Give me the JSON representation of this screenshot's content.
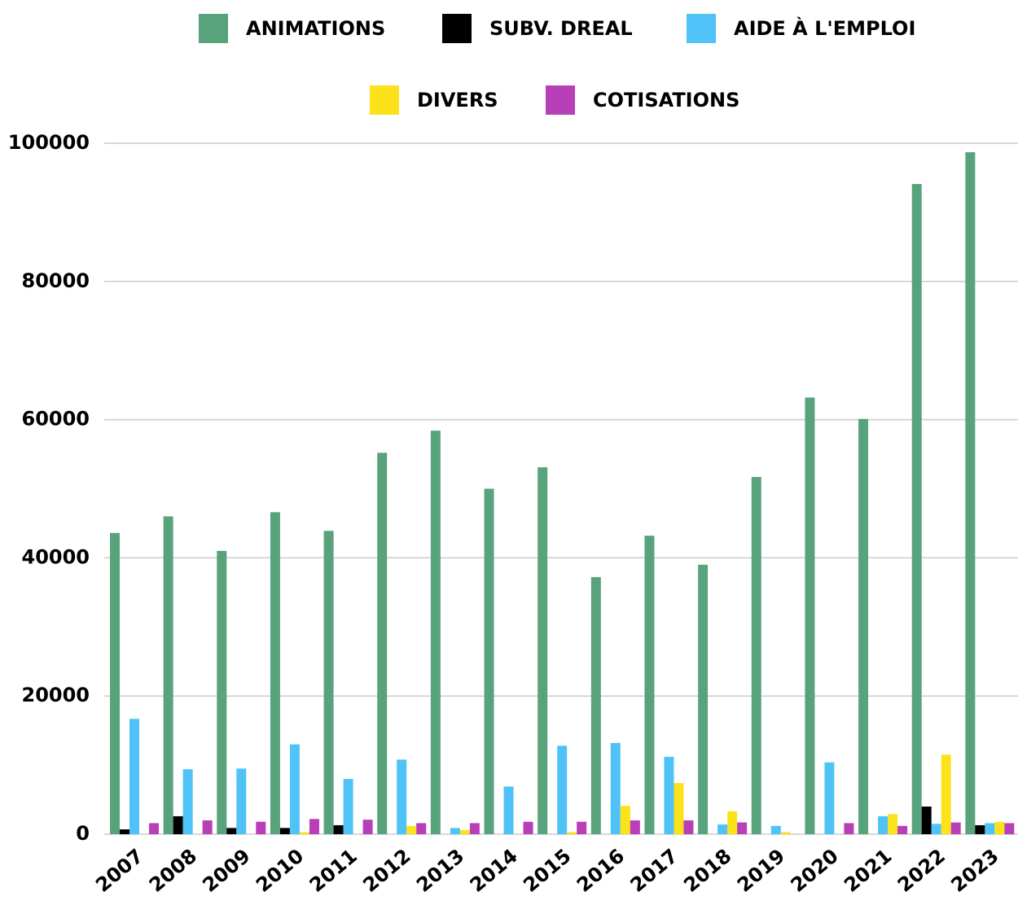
{
  "chart_data": {
    "type": "bar",
    "categories": [
      "2007",
      "2008",
      "2009",
      "2010",
      "2011",
      "2012",
      "2013",
      "2014",
      "2015",
      "2016",
      "2017",
      "2018",
      "2019",
      "2020",
      "2021",
      "2022",
      "2023"
    ],
    "series": [
      {
        "name": "ANIMATIONS",
        "color": "#58a37c",
        "values": [
          43600,
          46000,
          41000,
          46600,
          43900,
          55200,
          58400,
          50000,
          53100,
          37200,
          43200,
          39000,
          51700,
          63200,
          60100,
          94100,
          98700
        ]
      },
      {
        "name": "SUBV. DREAL",
        "color": "#000000",
        "values": [
          700,
          2600,
          900,
          900,
          1300,
          0,
          0,
          0,
          0,
          0,
          0,
          0,
          0,
          0,
          0,
          4000,
          1300
        ]
      },
      {
        "name": "AIDE À L'EMPLOI",
        "color": "#4fc3f7",
        "values": [
          16700,
          9400,
          9500,
          13000,
          8000,
          10800,
          900,
          6900,
          12800,
          13200,
          11200,
          1400,
          1200,
          10400,
          2600,
          1500,
          1600
        ]
      },
      {
        "name": "DIVERS",
        "color": "#fbe21b",
        "values": [
          0,
          0,
          0,
          300,
          0,
          1200,
          600,
          0,
          300,
          4100,
          7400,
          3300,
          300,
          0,
          2900,
          11500,
          1800
        ]
      },
      {
        "name": "COTISATIONS",
        "color": "#b83fb8",
        "values": [
          1600,
          2000,
          1800,
          2200,
          2100,
          1600,
          1600,
          1800,
          1800,
          2000,
          2000,
          1700,
          0,
          1600,
          1200,
          1700,
          1600
        ]
      }
    ],
    "ylim": [
      0,
      100000
    ],
    "yticks": [
      0,
      20000,
      40000,
      60000,
      80000,
      100000
    ],
    "grid": true
  }
}
